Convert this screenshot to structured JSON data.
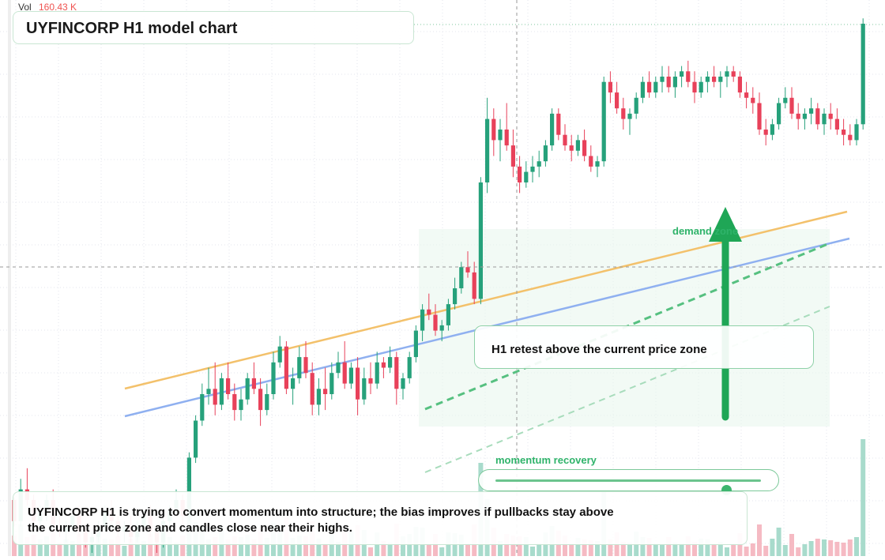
{
  "header": {
    "vol_label": "Vol",
    "vol_value": "160.43 K"
  },
  "title": "UYFINCORP H1 model chart",
  "annotations": {
    "callout": "H1 retest above the current price zone",
    "demand": "demand zone",
    "momentum_label": "momentum recovery",
    "momentum_level": 0.87
  },
  "summary": "UYFINCORP H1 is trying to convert momentum into structure; the bias improves if pullbacks stay above the current price zone and candles close near their highs.",
  "colors": {
    "up": "#26a17b",
    "down": "#e8415a",
    "vol_up": "#9fd7c7",
    "vol_down": "#f4b3bd",
    "ema_fast": "#f3c16b",
    "ema_slow": "#8fb0f0",
    "accent": "#1fa656",
    "zone_fill": "#e9f7ee"
  },
  "chart_data": {
    "type": "candlestick",
    "title": "UYFINCORP H1 model chart",
    "timeframe": "H1",
    "volume_last": "160.43 K",
    "price_range": [
      0,
      100
    ],
    "candles": [
      [
        10,
        10.5,
        5,
        6
      ],
      [
        6,
        14,
        5,
        12
      ],
      [
        12,
        16,
        9,
        10
      ],
      [
        10,
        11,
        5,
        6
      ],
      [
        6,
        9,
        4,
        8
      ],
      [
        8,
        11,
        6,
        10
      ],
      [
        10,
        12,
        4,
        5
      ],
      [
        5,
        7,
        3,
        4
      ],
      [
        4,
        6,
        2,
        5
      ],
      [
        5,
        8,
        4,
        7
      ],
      [
        7,
        9,
        3,
        4
      ],
      [
        4,
        5,
        1,
        2
      ],
      [
        2,
        4,
        0,
        3
      ],
      [
        3,
        6,
        2,
        5
      ],
      [
        5,
        9,
        4,
        8
      ],
      [
        8,
        10,
        5,
        6
      ],
      [
        6,
        7,
        3,
        4
      ],
      [
        4,
        6,
        2,
        5
      ],
      [
        5,
        7,
        2,
        3
      ],
      [
        3,
        6,
        2,
        5
      ],
      [
        5,
        8,
        4,
        7
      ],
      [
        7,
        9,
        3,
        4
      ],
      [
        4,
        5,
        0,
        2
      ],
      [
        2,
        7,
        1,
        6
      ],
      [
        6,
        9,
        5,
        8
      ],
      [
        8,
        12,
        7,
        10
      ],
      [
        10,
        11,
        5,
        7
      ],
      [
        7,
        19,
        6,
        18
      ],
      [
        18,
        26,
        17,
        25
      ],
      [
        25,
        32,
        24,
        30
      ],
      [
        30,
        35,
        28,
        31
      ],
      [
        31,
        36,
        26,
        28
      ],
      [
        28,
        34,
        27,
        33
      ],
      [
        33,
        36,
        29,
        30
      ],
      [
        30,
        32,
        25,
        27
      ],
      [
        27,
        31,
        25,
        29
      ],
      [
        29,
        34,
        28,
        33
      ],
      [
        33,
        36,
        30,
        31
      ],
      [
        31,
        33,
        24,
        27
      ],
      [
        27,
        32,
        26,
        30
      ],
      [
        30,
        38,
        29,
        36
      ],
      [
        36,
        41,
        35,
        39
      ],
      [
        39,
        40,
        30,
        31
      ],
      [
        31,
        35,
        28,
        33
      ],
      [
        33,
        39,
        32,
        37
      ],
      [
        37,
        40,
        33,
        34
      ],
      [
        34,
        36,
        26,
        28
      ],
      [
        28,
        33,
        26,
        31
      ],
      [
        31,
        35,
        27,
        30
      ],
      [
        30,
        36,
        29,
        34
      ],
      [
        34,
        38,
        33,
        36
      ],
      [
        36,
        40,
        31,
        32
      ],
      [
        32,
        36,
        31,
        35
      ],
      [
        35,
        37,
        26,
        29
      ],
      [
        29,
        35,
        28,
        33
      ],
      [
        33,
        36,
        30,
        32
      ],
      [
        32,
        38,
        31,
        36
      ],
      [
        36,
        37,
        33,
        35
      ],
      [
        35,
        39,
        34,
        37
      ],
      [
        37,
        38,
        28,
        31
      ],
      [
        31,
        34,
        29,
        33
      ],
      [
        33,
        38,
        32,
        37
      ],
      [
        37,
        43,
        36,
        42
      ],
      [
        42,
        47,
        40,
        46
      ],
      [
        46,
        49,
        44,
        45
      ],
      [
        45,
        47,
        41,
        42
      ],
      [
        42,
        44,
        40,
        43
      ],
      [
        43,
        48,
        42,
        47
      ],
      [
        47,
        52,
        46,
        50
      ],
      [
        50,
        55,
        49,
        54
      ],
      [
        54,
        57,
        52,
        53
      ],
      [
        53,
        55,
        47,
        48
      ],
      [
        48,
        71,
        47,
        70
      ],
      [
        70,
        86,
        68,
        82
      ],
      [
        82,
        84,
        75,
        78
      ],
      [
        78,
        82,
        74,
        80
      ],
      [
        80,
        85,
        76,
        77
      ],
      [
        77,
        80,
        71,
        73
      ],
      [
        73,
        75,
        68,
        70
      ],
      [
        70,
        74,
        69,
        72
      ],
      [
        72,
        75,
        70,
        73
      ],
      [
        73,
        76,
        71,
        74
      ],
      [
        74,
        78,
        73,
        77
      ],
      [
        77,
        84,
        76,
        83
      ],
      [
        83,
        84,
        78,
        79
      ],
      [
        79,
        81,
        76,
        77
      ],
      [
        77,
        79,
        74,
        76
      ],
      [
        76,
        79,
        75,
        78
      ],
      [
        78,
        80,
        74,
        75
      ],
      [
        75,
        77,
        72,
        73
      ],
      [
        73,
        75,
        71,
        74
      ],
      [
        74,
        90,
        73,
        89
      ],
      [
        89,
        91,
        85,
        87
      ],
      [
        87,
        89,
        83,
        84
      ],
      [
        84,
        86,
        80,
        82
      ],
      [
        82,
        84,
        79,
        83
      ],
      [
        83,
        87,
        82,
        86
      ],
      [
        86,
        90,
        85,
        89
      ],
      [
        89,
        91,
        86,
        87
      ],
      [
        87,
        90,
        86,
        89
      ],
      [
        89,
        92,
        87,
        90
      ],
      [
        90,
        92,
        87,
        88
      ],
      [
        88,
        91,
        86,
        90
      ],
      [
        90,
        92,
        88,
        91
      ],
      [
        91,
        93,
        88,
        89
      ],
      [
        89,
        91,
        85,
        87
      ],
      [
        87,
        90,
        86,
        89
      ],
      [
        89,
        91,
        87,
        90
      ],
      [
        90,
        92,
        88,
        89
      ],
      [
        89,
        91,
        86,
        90
      ],
      [
        90,
        92,
        88,
        91
      ],
      [
        91,
        92,
        89,
        90
      ],
      [
        90,
        91,
        86,
        87
      ],
      [
        87,
        89,
        84,
        86
      ],
      [
        86,
        88,
        83,
        85
      ],
      [
        85,
        87,
        79,
        80
      ],
      [
        80,
        82,
        77,
        79
      ],
      [
        79,
        82,
        78,
        81
      ],
      [
        81,
        86,
        80,
        85
      ],
      [
        85,
        88,
        84,
        86
      ],
      [
        86,
        88,
        82,
        83
      ],
      [
        83,
        85,
        80,
        82
      ],
      [
        82,
        84,
        80,
        83
      ],
      [
        83,
        86,
        81,
        84
      ],
      [
        84,
        85,
        80,
        81
      ],
      [
        81,
        84,
        79,
        83
      ],
      [
        83,
        85,
        80,
        82
      ],
      [
        82,
        84,
        79,
        80
      ],
      [
        80,
        82,
        77,
        79
      ],
      [
        79,
        81,
        77,
        78
      ],
      [
        78,
        82,
        77,
        81
      ],
      [
        81,
        101,
        80,
        100
      ]
    ]
  }
}
